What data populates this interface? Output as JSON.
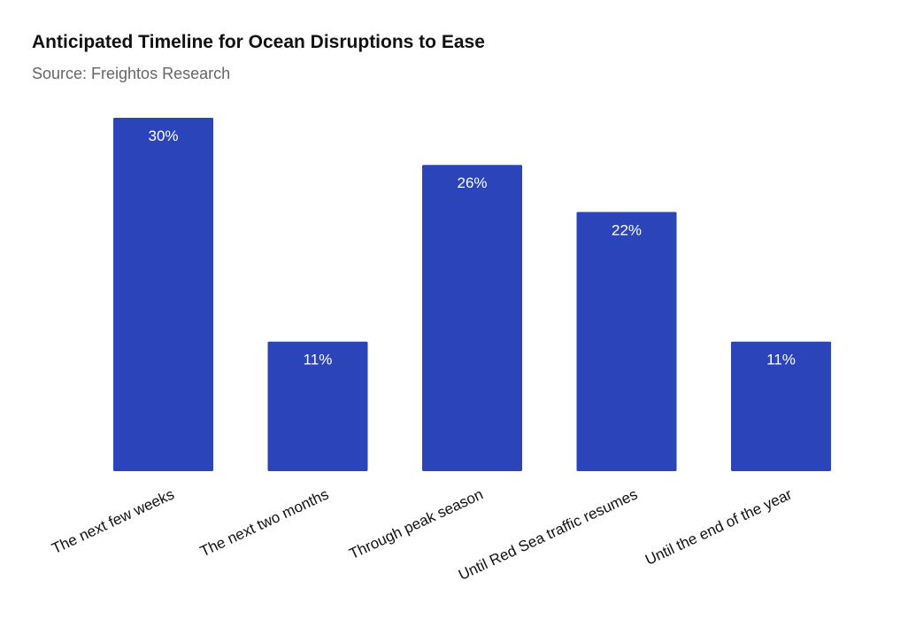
{
  "header": {
    "title": "Anticipated Timeline for Ocean Disruptions to Ease",
    "subtitle": "Source: Freightos Research"
  },
  "colors": {
    "bar": "#2b44b9"
  },
  "chart_data": {
    "type": "bar",
    "title": "Anticipated Timeline for Ocean Disruptions to Ease",
    "subtitle": "Source: Freightos Research",
    "categories": [
      "The next few weeks",
      "The next two months",
      "Through peak season",
      "Until Red Sea traffic resumes",
      "Until the end of the year"
    ],
    "values": [
      30,
      11,
      26,
      22,
      11
    ],
    "data_labels": [
      "30%",
      "11%",
      "26%",
      "22%",
      "11%"
    ],
    "xlabel": "",
    "ylabel": "",
    "ylim": [
      0,
      30
    ],
    "grid": false,
    "legend": "none"
  }
}
